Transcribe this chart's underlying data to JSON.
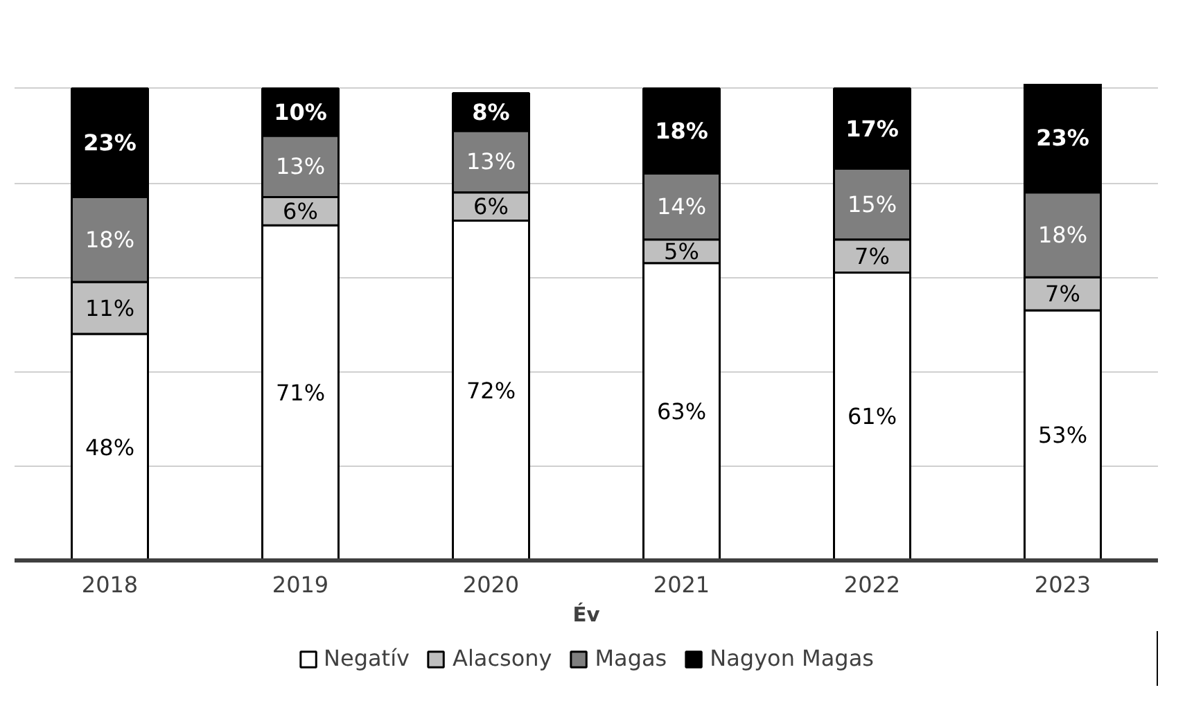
{
  "chart_data": {
    "type": "bar",
    "stacked": true,
    "xlabel": "Év",
    "categories": [
      "2018",
      "2019",
      "2020",
      "2021",
      "2022",
      "2023"
    ],
    "series": [
      {
        "name": "Negatív",
        "color": "#ffffff",
        "values": [
          48,
          71,
          72,
          63,
          61,
          53
        ],
        "value_labels": [
          "48%",
          "71%",
          "72%",
          "63%",
          "61%",
          "53%"
        ]
      },
      {
        "name": "Alacsony",
        "color": "#bfbfbf",
        "values": [
          11,
          6,
          6,
          5,
          7,
          7
        ],
        "value_labels": [
          "11%",
          "6%",
          "6%",
          "5%",
          "7%",
          "7%"
        ]
      },
      {
        "name": "Magas",
        "color": "#7f7f7f",
        "values": [
          18,
          13,
          13,
          14,
          15,
          18
        ],
        "value_labels": [
          "18%",
          "13%",
          "13%",
          "14%",
          "15%",
          "18%"
        ]
      },
      {
        "name": "Nagyon Magas",
        "color": "#000000",
        "values": [
          23,
          10,
          8,
          18,
          17,
          23
        ],
        "value_labels": [
          "23%",
          "10%",
          "8%",
          "18%",
          "17%",
          "23%"
        ]
      }
    ],
    "tick_labels": "x",
    "grid": "y",
    "legend": "bottom"
  }
}
